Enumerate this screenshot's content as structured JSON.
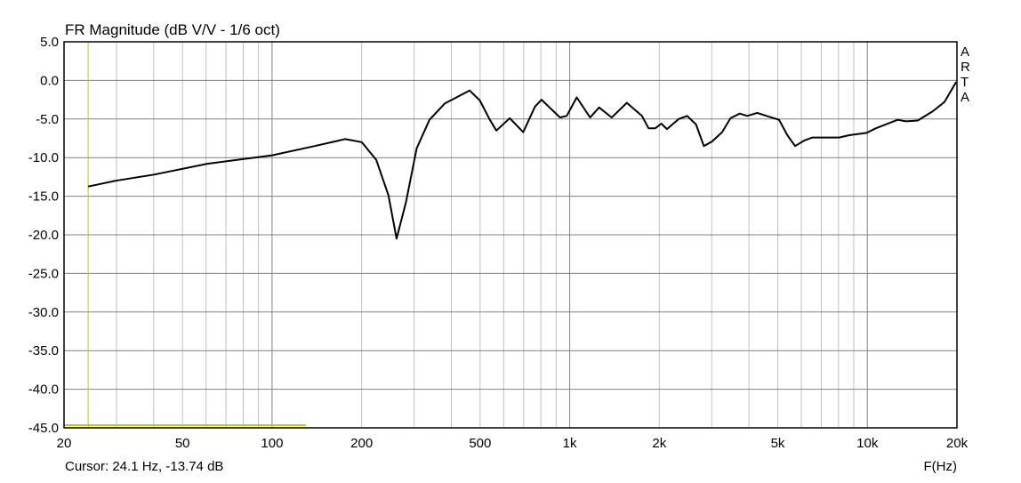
{
  "chart_data": {
    "type": "line",
    "title": "FR Magnitude (dB V/V - 1/6 oct)",
    "xlabel": "F(Hz)",
    "ylabel": "",
    "xscale": "log",
    "xlim": [
      20,
      20000
    ],
    "ylim": [
      -45,
      5
    ],
    "grid": true,
    "x_ticks": [
      20,
      50,
      100,
      200,
      500,
      1000,
      2000,
      5000,
      10000,
      20000
    ],
    "x_tick_labels": [
      "20",
      "50",
      "100",
      "200",
      "500",
      "1k",
      "2k",
      "5k",
      "10k",
      "20k"
    ],
    "y_ticks": [
      5,
      0,
      -5,
      -10,
      -15,
      -20,
      -25,
      -30,
      -35,
      -40,
      -45
    ],
    "y_tick_labels": [
      "5.0",
      "0.0",
      "-5.0",
      "-10.0",
      "-15.0",
      "-20.0",
      "-25.0",
      "-30.0",
      "-35.0",
      "-40.0",
      "-45.0"
    ],
    "series": [
      {
        "color": "#000000",
        "x": [
          24.1,
          29.8,
          40.1,
          60.6,
          100,
          139,
          176,
          200,
          224,
          246,
          262,
          282,
          306,
          338,
          380,
          461,
          499,
          539,
          567,
          629,
          698,
          764,
          804,
          928,
          977,
          1056,
          1171,
          1255,
          1384,
          1555,
          1748,
          1840,
          1938,
          2031,
          2122,
          2324,
          2480,
          2657,
          2822,
          3010,
          3251,
          3470,
          3721,
          3949,
          4266,
          4672,
          5050,
          5386,
          5716,
          6128,
          6537,
          8036,
          8690,
          9938,
          10688,
          12642,
          13488,
          14766,
          16588,
          18156,
          19880
        ],
        "y": [
          -13.74,
          -13.0,
          -12.2,
          -10.8,
          -9.7,
          -8.5,
          -7.6,
          -8.0,
          -10.3,
          -14.9,
          -20.5,
          -15.7,
          -8.8,
          -5.1,
          -3.0,
          -1.3,
          -2.6,
          -5.1,
          -6.5,
          -4.9,
          -6.7,
          -3.4,
          -2.5,
          -4.8,
          -4.6,
          -2.2,
          -4.8,
          -3.5,
          -4.8,
          -2.9,
          -4.6,
          -6.2,
          -6.2,
          -5.6,
          -6.3,
          -5.0,
          -4.6,
          -5.7,
          -8.5,
          -7.9,
          -6.7,
          -4.9,
          -4.3,
          -4.6,
          -4.2,
          -4.7,
          -5.1,
          -7.1,
          -8.5,
          -7.8,
          -7.4,
          -7.4,
          -7.1,
          -6.8,
          -6.2,
          -5.1,
          -5.3,
          -5.2,
          -4.0,
          -2.8,
          -0.2
        ]
      }
    ],
    "cursor": {
      "frequency_hz": 24.1,
      "level_db": -13.74,
      "color": "#c8c800"
    },
    "cursor_label": "Cursor: 24.1 Hz, -13.74 dB",
    "watermark": [
      "A",
      "R",
      "T",
      "A"
    ]
  }
}
